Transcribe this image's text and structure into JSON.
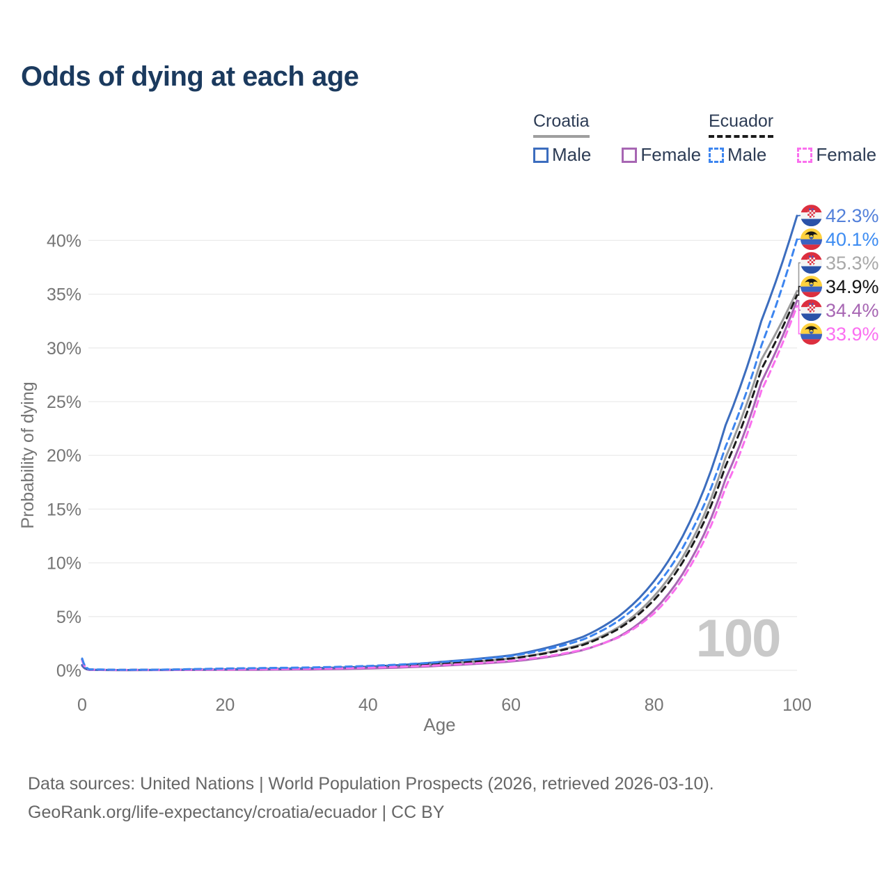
{
  "title": "Odds of dying at each age",
  "watermark": {
    "text": "100",
    "color": "#c9c9c9"
  },
  "legend": {
    "groups": [
      {
        "name": "Croatia",
        "underline_style": "solid",
        "underline_color": "#9e9e9e",
        "items": [
          {
            "label": "Male",
            "color": "#3c6dbe",
            "style": "solid"
          },
          {
            "label": "Female",
            "color": "#a766b3",
            "style": "solid"
          }
        ]
      },
      {
        "name": "Ecuador",
        "underline_style": "dashed",
        "underline_color": "#1b1b1b",
        "items": [
          {
            "label": "Male",
            "color": "#3d85ef",
            "style": "dashed"
          },
          {
            "label": "Female",
            "color": "#fa70ee",
            "style": "dashed"
          }
        ]
      }
    ]
  },
  "footer": {
    "line1": "Data sources: United Nations | World Population Prospects (2026, retrieved 2026-03-10).",
    "line2": "GeoRank.org/life-expectancy/croatia/ecuador | CC BY"
  },
  "chart_data": {
    "type": "line",
    "title": "Odds of dying at each age",
    "xlabel": "Age",
    "ylabel": "Probability of dying",
    "xlim": [
      0,
      100
    ],
    "ylim_percent": [
      0,
      42.5
    ],
    "x_ticks": [
      0,
      20,
      40,
      60,
      80,
      100
    ],
    "y_ticks_percent": [
      0,
      5,
      10,
      15,
      20,
      25,
      30,
      35,
      40
    ],
    "grid": "horizontal",
    "legend_position": "top-right",
    "annotation": "100",
    "series": [
      {
        "id": "croatia-male",
        "name": "Croatia — Male",
        "country": "Croatia",
        "sex": "Male",
        "color": "#3c6dbe",
        "label_color": "#5380da",
        "style": "solid",
        "end_value_percent": 42.3,
        "end_label": "42.3%",
        "flag": "croatia",
        "points": [
          [
            0,
            0.5
          ],
          [
            1,
            0.05
          ],
          [
            5,
            0.03
          ],
          [
            10,
            0.04
          ],
          [
            15,
            0.07
          ],
          [
            20,
            0.1
          ],
          [
            25,
            0.13
          ],
          [
            30,
            0.17
          ],
          [
            35,
            0.24
          ],
          [
            40,
            0.35
          ],
          [
            45,
            0.52
          ],
          [
            50,
            0.78
          ],
          [
            55,
            1.05
          ],
          [
            60,
            1.4
          ],
          [
            65,
            2.1
          ],
          [
            70,
            3.1
          ],
          [
            75,
            5.0
          ],
          [
            80,
            8.3
          ],
          [
            85,
            13.8
          ],
          [
            90,
            22.8
          ],
          [
            95,
            32.5
          ],
          [
            100,
            42.3
          ]
        ]
      },
      {
        "id": "ecuador-male",
        "name": "Ecuador — Male",
        "country": "Ecuador",
        "sex": "Male",
        "color": "#3d85ef",
        "label_color": "#3d8cf2",
        "style": "dashed",
        "end_value_percent": 40.1,
        "end_label": "40.1%",
        "flag": "ecuador",
        "points": [
          [
            0,
            1.1
          ],
          [
            1,
            0.1
          ],
          [
            5,
            0.05
          ],
          [
            10,
            0.06
          ],
          [
            15,
            0.11
          ],
          [
            20,
            0.17
          ],
          [
            25,
            0.21
          ],
          [
            30,
            0.25
          ],
          [
            35,
            0.31
          ],
          [
            40,
            0.41
          ],
          [
            45,
            0.56
          ],
          [
            50,
            0.76
          ],
          [
            55,
            1.0
          ],
          [
            60,
            1.33
          ],
          [
            65,
            1.95
          ],
          [
            70,
            2.85
          ],
          [
            75,
            4.6
          ],
          [
            80,
            7.6
          ],
          [
            85,
            12.6
          ],
          [
            90,
            20.8
          ],
          [
            95,
            30.2
          ],
          [
            100,
            40.1
          ]
        ]
      },
      {
        "id": "croatia-total",
        "name": "Croatia — Total",
        "country": "Croatia",
        "sex": "Both",
        "color": "#9b9b9b",
        "label_color": "#a8a8a8",
        "style": "solid",
        "end_value_percent": 35.3,
        "end_label": "35.3%",
        "flag": "croatia",
        "points": [
          [
            0,
            0.48
          ],
          [
            1,
            0.05
          ],
          [
            5,
            0.025
          ],
          [
            10,
            0.03
          ],
          [
            15,
            0.05
          ],
          [
            20,
            0.08
          ],
          [
            25,
            0.1
          ],
          [
            30,
            0.12
          ],
          [
            35,
            0.17
          ],
          [
            40,
            0.26
          ],
          [
            45,
            0.4
          ],
          [
            50,
            0.6
          ],
          [
            55,
            0.82
          ],
          [
            60,
            1.1
          ],
          [
            65,
            1.65
          ],
          [
            70,
            2.45
          ],
          [
            75,
            4.0
          ],
          [
            80,
            6.9
          ],
          [
            85,
            11.7
          ],
          [
            90,
            19.8
          ],
          [
            95,
            28.9
          ],
          [
            100,
            35.3
          ]
        ]
      },
      {
        "id": "ecuador-total",
        "name": "Ecuador — Total",
        "country": "Ecuador",
        "sex": "Both",
        "color": "#1b1b1b",
        "label_color": "#151515",
        "style": "dashed",
        "end_value_percent": 34.9,
        "end_label": "34.9%",
        "flag": "ecuador",
        "points": [
          [
            0,
            1.0
          ],
          [
            1,
            0.08
          ],
          [
            5,
            0.04
          ],
          [
            10,
            0.05
          ],
          [
            15,
            0.09
          ],
          [
            20,
            0.13
          ],
          [
            25,
            0.16
          ],
          [
            30,
            0.19
          ],
          [
            35,
            0.24
          ],
          [
            40,
            0.32
          ],
          [
            45,
            0.44
          ],
          [
            50,
            0.61
          ],
          [
            55,
            0.82
          ],
          [
            60,
            1.1
          ],
          [
            65,
            1.6
          ],
          [
            70,
            2.35
          ],
          [
            75,
            3.85
          ],
          [
            80,
            6.55
          ],
          [
            85,
            11.2
          ],
          [
            90,
            19.0
          ],
          [
            95,
            28.0
          ],
          [
            100,
            34.9
          ]
        ]
      },
      {
        "id": "croatia-female",
        "name": "Croatia — Female",
        "country": "Croatia",
        "sex": "Female",
        "color": "#a766b3",
        "label_color": "#a766b3",
        "style": "solid",
        "end_value_percent": 34.4,
        "end_label": "34.4%",
        "flag": "croatia",
        "points": [
          [
            0,
            0.42
          ],
          [
            1,
            0.04
          ],
          [
            5,
            0.02
          ],
          [
            10,
            0.025
          ],
          [
            15,
            0.035
          ],
          [
            20,
            0.045
          ],
          [
            25,
            0.055
          ],
          [
            30,
            0.075
          ],
          [
            35,
            0.11
          ],
          [
            40,
            0.17
          ],
          [
            45,
            0.27
          ],
          [
            50,
            0.42
          ],
          [
            55,
            0.6
          ],
          [
            60,
            0.82
          ],
          [
            65,
            1.22
          ],
          [
            70,
            1.88
          ],
          [
            75,
            3.1
          ],
          [
            80,
            5.6
          ],
          [
            85,
            10.1
          ],
          [
            90,
            17.8
          ],
          [
            95,
            26.8
          ],
          [
            100,
            34.4
          ]
        ]
      },
      {
        "id": "ecuador-female",
        "name": "Ecuador — Female",
        "country": "Ecuador",
        "sex": "Female",
        "color": "#fa70ee",
        "label_color": "#fb6ff1",
        "style": "dashed",
        "end_value_percent": 33.9,
        "end_label": "33.9%",
        "flag": "ecuador",
        "points": [
          [
            0,
            0.92
          ],
          [
            1,
            0.07
          ],
          [
            5,
            0.035
          ],
          [
            10,
            0.04
          ],
          [
            15,
            0.06
          ],
          [
            20,
            0.09
          ],
          [
            25,
            0.11
          ],
          [
            30,
            0.14
          ],
          [
            35,
            0.18
          ],
          [
            40,
            0.25
          ],
          [
            45,
            0.35
          ],
          [
            50,
            0.48
          ],
          [
            55,
            0.66
          ],
          [
            60,
            0.9
          ],
          [
            65,
            1.3
          ],
          [
            70,
            1.92
          ],
          [
            75,
            3.05
          ],
          [
            80,
            5.3
          ],
          [
            85,
            9.6
          ],
          [
            90,
            17.0
          ],
          [
            95,
            26.0
          ],
          [
            100,
            33.9
          ]
        ]
      }
    ]
  }
}
